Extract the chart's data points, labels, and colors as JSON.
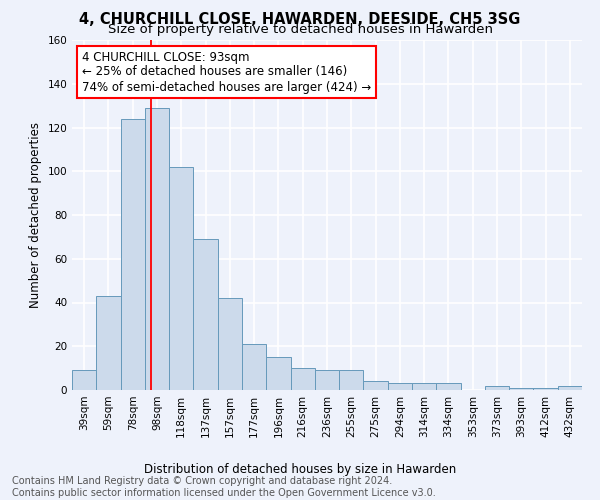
{
  "title": "4, CHURCHILL CLOSE, HAWARDEN, DEESIDE, CH5 3SG",
  "subtitle": "Size of property relative to detached houses in Hawarden",
  "xlabel": "Distribution of detached houses by size in Hawarden",
  "ylabel": "Number of detached properties",
  "bar_color": "#ccdaeb",
  "bar_edge_color": "#6699bb",
  "categories": [
    "39sqm",
    "59sqm",
    "78sqm",
    "98sqm",
    "118sqm",
    "137sqm",
    "157sqm",
    "177sqm",
    "196sqm",
    "216sqm",
    "236sqm",
    "255sqm",
    "275sqm",
    "294sqm",
    "314sqm",
    "334sqm",
    "353sqm",
    "373sqm",
    "393sqm",
    "412sqm",
    "432sqm"
  ],
  "values": [
    9,
    43,
    124,
    129,
    102,
    69,
    42,
    21,
    15,
    10,
    9,
    9,
    4,
    3,
    3,
    3,
    0,
    2,
    1,
    1,
    2
  ],
  "ylim": [
    0,
    160
  ],
  "yticks": [
    0,
    20,
    40,
    60,
    80,
    100,
    120,
    140,
    160
  ],
  "annotation_title": "4 CHURCHILL CLOSE: 93sqm",
  "annotation_line1": "← 25% of detached houses are smaller (146)",
  "annotation_line2": "74% of semi-detached houses are larger (424) →",
  "footnote1": "Contains HM Land Registry data © Crown copyright and database right 2024.",
  "footnote2": "Contains public sector information licensed under the Open Government Licence v3.0.",
  "bg_color": "#eef2fb",
  "grid_color": "#ffffff",
  "title_fontsize": 10.5,
  "subtitle_fontsize": 9.5,
  "label_fontsize": 8.5,
  "tick_fontsize": 7.5,
  "footnote_fontsize": 7.0,
  "ann_fontsize": 8.5
}
